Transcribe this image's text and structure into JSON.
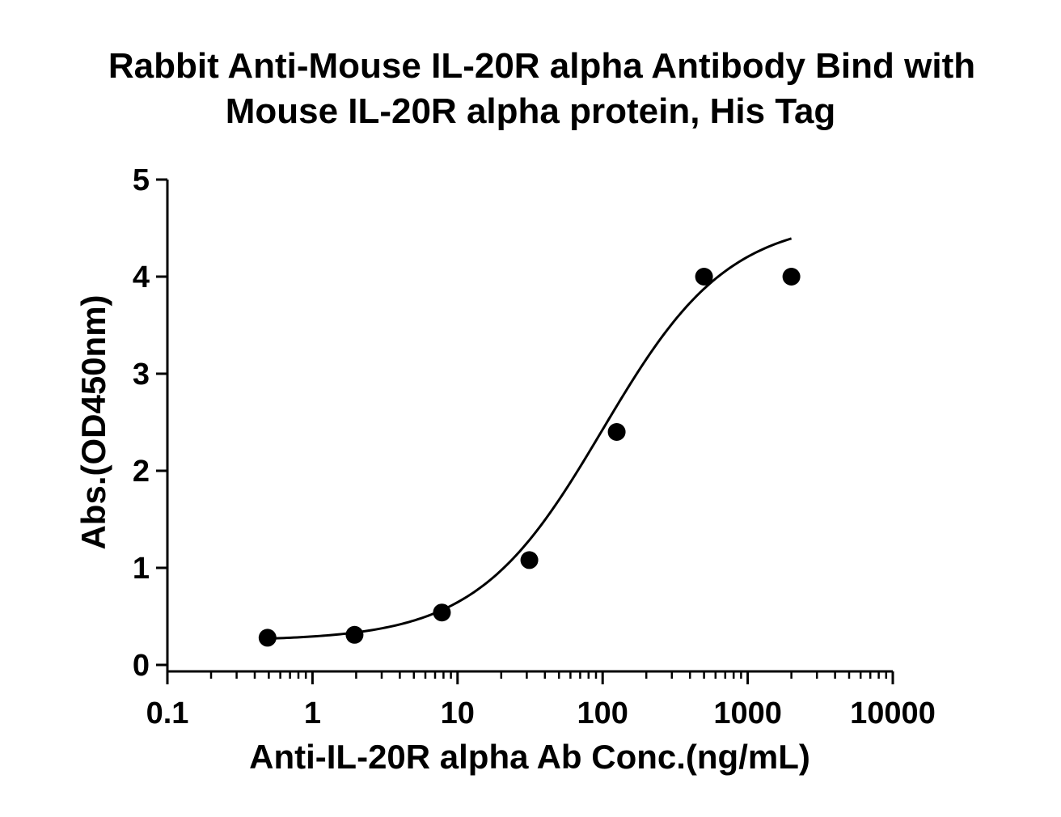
{
  "chart_data": {
    "type": "scatter",
    "title_lines": [
      "Rabbit Anti-Mouse IL-20R alpha Antibody Bind with",
      "Mouse IL-20R alpha protein, His Tag"
    ],
    "xlabel": "Anti-IL-20R alpha Ab Conc.(ng/mL)",
    "ylabel": "Abs.(OD450nm)",
    "x_scale": "log",
    "xlim": [
      0.1,
      10000
    ],
    "ylim": [
      0,
      5
    ],
    "x_ticks": [
      {
        "value": 0.1,
        "label": "0.1"
      },
      {
        "value": 1,
        "label": "1"
      },
      {
        "value": 10,
        "label": "10"
      },
      {
        "value": 100,
        "label": "100"
      },
      {
        "value": 1000,
        "label": "1000"
      },
      {
        "value": 10000,
        "label": "10000"
      }
    ],
    "y_ticks": [
      {
        "value": 0,
        "label": "0"
      },
      {
        "value": 1,
        "label": "1"
      },
      {
        "value": 2,
        "label": "2"
      },
      {
        "value": 3,
        "label": "3"
      },
      {
        "value": 4,
        "label": "4"
      },
      {
        "value": 5,
        "label": "5"
      }
    ],
    "grid": false,
    "legend": "none",
    "series": [
      {
        "points": [
          {
            "x": 0.49,
            "y": 0.28
          },
          {
            "x": 1.95,
            "y": 0.31
          },
          {
            "x": 7.8,
            "y": 0.54
          },
          {
            "x": 31.25,
            "y": 1.08
          },
          {
            "x": 125,
            "y": 2.4
          },
          {
            "x": 500,
            "y": 4.0
          },
          {
            "x": 2000,
            "y": 4.0
          }
        ],
        "fit": {
          "model": "4PL",
          "bottom": 0.25,
          "top": 4.6,
          "ec50": 100,
          "hill": 1.0,
          "x_range": [
            0.49,
            2000
          ]
        },
        "color": "#000000"
      }
    ]
  }
}
